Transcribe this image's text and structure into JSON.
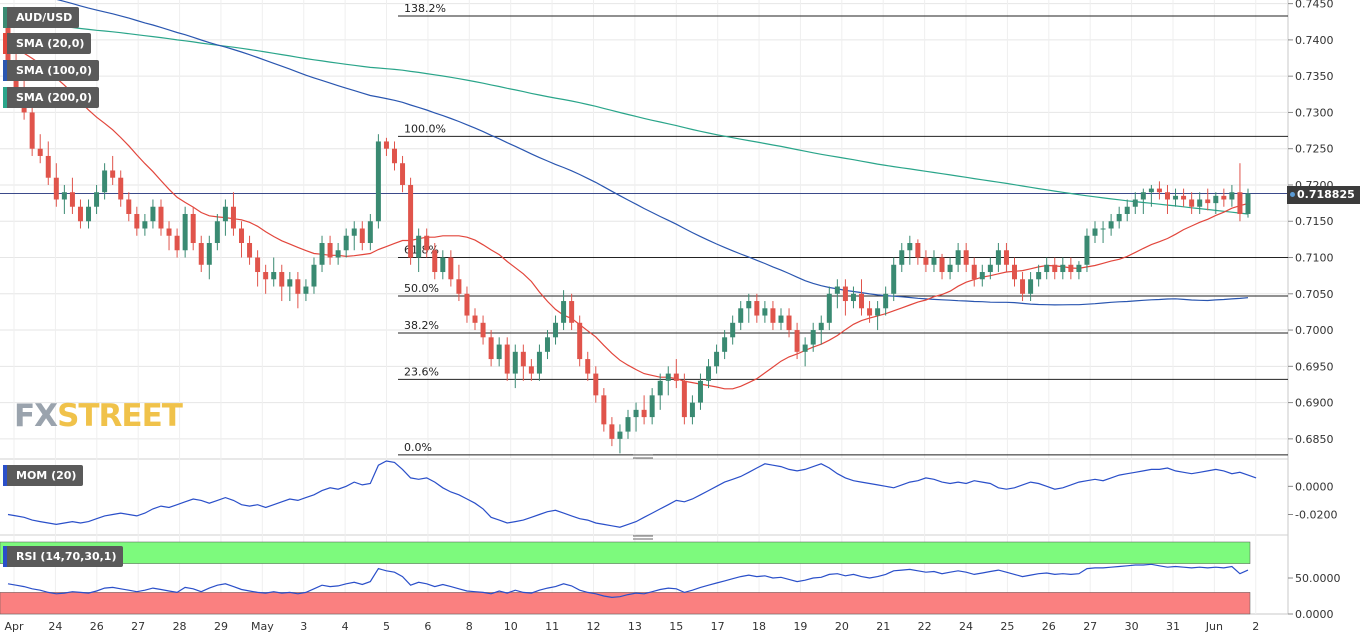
{
  "colors": {
    "bull": "#3a8a72",
    "bear": "#e0544b",
    "sma20": "#e2463c",
    "sma100": "#2a56b0",
    "sma200": "#2aa58a",
    "mom": "#2a4fc9",
    "rsi": "#2a4fc9",
    "rsi_overbought_zone": "#7dfa7d",
    "rsi_oversold_zone": "#fa8080",
    "grid": "#e6e6e6",
    "fib_line": "#222222",
    "price_line": "#3b4a8a"
  },
  "indicators": {
    "symbol": "AUD/USD",
    "sma20": "SMA (20,0)",
    "sma100": "SMA (100,0)",
    "sma200": "SMA (200,0)",
    "mom": "MOM (20)",
    "rsi": "RSI (14,70,30,1)"
  },
  "current_price": "0.718825",
  "logo": {
    "fx": "FX",
    "street": "STREET"
  },
  "chart_data": {
    "type": "candlestick",
    "x_labels": [
      "Apr",
      "24",
      "26",
      "27",
      "28",
      "29",
      "May",
      "3",
      "4",
      "5",
      "6",
      "8",
      "10",
      "11",
      "12",
      "13",
      "15",
      "17",
      "18",
      "19",
      "20",
      "21",
      "22",
      "24",
      "25",
      "26",
      "27",
      "30",
      "31",
      "Jun",
      "2"
    ],
    "price_axis": {
      "ticks": [
        "0.7450",
        "0.7400",
        "0.7350",
        "0.7300",
        "0.7250",
        "0.7200",
        "0.7150",
        "0.7100",
        "0.7050",
        "0.7000",
        "0.6950",
        "0.6900",
        "0.6850"
      ],
      "ylim": [
        0.6825,
        0.7455
      ]
    },
    "fibonacci": [
      {
        "label": "138.2%",
        "value": 0.7433
      },
      {
        "label": "100.0%",
        "value": 0.7267
      },
      {
        "label": "61.8%",
        "value": 0.71
      },
      {
        "label": "50.0%",
        "value": 0.7047
      },
      {
        "label": "38.2%",
        "value": 0.6996
      },
      {
        "label": "23.6%",
        "value": 0.6932
      },
      {
        "label": "0.0%",
        "value": 0.6828
      }
    ],
    "current_price": 0.718825,
    "candles": [
      [
        0.742,
        0.744,
        0.736,
        0.737
      ],
      [
        0.737,
        0.739,
        0.732,
        0.733
      ],
      [
        0.733,
        0.735,
        0.729,
        0.73
      ],
      [
        0.73,
        0.731,
        0.724,
        0.725
      ],
      [
        0.725,
        0.727,
        0.723,
        0.724
      ],
      [
        0.724,
        0.726,
        0.72,
        0.721
      ],
      [
        0.721,
        0.723,
        0.717,
        0.718
      ],
      [
        0.718,
        0.72,
        0.716,
        0.719
      ],
      [
        0.719,
        0.721,
        0.716,
        0.717
      ],
      [
        0.717,
        0.718,
        0.714,
        0.715
      ],
      [
        0.715,
        0.718,
        0.714,
        0.717
      ],
      [
        0.717,
        0.72,
        0.716,
        0.719
      ],
      [
        0.719,
        0.723,
        0.718,
        0.722
      ],
      [
        0.722,
        0.724,
        0.72,
        0.721
      ],
      [
        0.721,
        0.722,
        0.717,
        0.718
      ],
      [
        0.718,
        0.719,
        0.715,
        0.716
      ],
      [
        0.716,
        0.717,
        0.713,
        0.714
      ],
      [
        0.714,
        0.716,
        0.713,
        0.715
      ],
      [
        0.715,
        0.718,
        0.714,
        0.717
      ],
      [
        0.717,
        0.718,
        0.713,
        0.714
      ],
      [
        0.714,
        0.715,
        0.711,
        0.713
      ],
      [
        0.713,
        0.714,
        0.71,
        0.711
      ],
      [
        0.711,
        0.717,
        0.71,
        0.716
      ],
      [
        0.716,
        0.717,
        0.711,
        0.712
      ],
      [
        0.712,
        0.713,
        0.708,
        0.709
      ],
      [
        0.709,
        0.713,
        0.707,
        0.712
      ],
      [
        0.712,
        0.716,
        0.711,
        0.715
      ],
      [
        0.715,
        0.718,
        0.713,
        0.717
      ],
      [
        0.717,
        0.719,
        0.713,
        0.714
      ],
      [
        0.714,
        0.715,
        0.71,
        0.712
      ],
      [
        0.712,
        0.713,
        0.709,
        0.71
      ],
      [
        0.71,
        0.711,
        0.706,
        0.708
      ],
      [
        0.708,
        0.709,
        0.705,
        0.707
      ],
      [
        0.707,
        0.71,
        0.706,
        0.708
      ],
      [
        0.708,
        0.709,
        0.704,
        0.706
      ],
      [
        0.706,
        0.708,
        0.704,
        0.707
      ],
      [
        0.707,
        0.708,
        0.703,
        0.705
      ],
      [
        0.705,
        0.707,
        0.704,
        0.706
      ],
      [
        0.706,
        0.71,
        0.705,
        0.709
      ],
      [
        0.709,
        0.713,
        0.708,
        0.712
      ],
      [
        0.712,
        0.713,
        0.709,
        0.71
      ],
      [
        0.71,
        0.712,
        0.709,
        0.711
      ],
      [
        0.711,
        0.714,
        0.71,
        0.713
      ],
      [
        0.713,
        0.715,
        0.711,
        0.714
      ],
      [
        0.714,
        0.715,
        0.711,
        0.712
      ],
      [
        0.712,
        0.716,
        0.711,
        0.715
      ],
      [
        0.715,
        0.727,
        0.714,
        0.726
      ],
      [
        0.726,
        0.7265,
        0.724,
        0.725
      ],
      [
        0.725,
        0.726,
        0.722,
        0.723
      ],
      [
        0.723,
        0.724,
        0.719,
        0.72
      ],
      [
        0.72,
        0.721,
        0.709,
        0.71
      ],
      [
        0.71,
        0.714,
        0.708,
        0.713
      ],
      [
        0.713,
        0.714,
        0.71,
        0.711
      ],
      [
        0.711,
        0.712,
        0.707,
        0.708
      ],
      [
        0.708,
        0.711,
        0.707,
        0.71
      ],
      [
        0.71,
        0.711,
        0.706,
        0.707
      ],
      [
        0.707,
        0.709,
        0.704,
        0.705
      ],
      [
        0.705,
        0.706,
        0.701,
        0.702
      ],
      [
        0.702,
        0.703,
        0.7,
        0.701
      ],
      [
        0.701,
        0.702,
        0.698,
        0.699
      ],
      [
        0.699,
        0.7,
        0.695,
        0.696
      ],
      [
        0.696,
        0.699,
        0.695,
        0.698
      ],
      [
        0.698,
        0.699,
        0.693,
        0.694
      ],
      [
        0.694,
        0.698,
        0.692,
        0.697
      ],
      [
        0.697,
        0.698,
        0.693,
        0.695
      ],
      [
        0.695,
        0.696,
        0.693,
        0.694
      ],
      [
        0.694,
        0.698,
        0.693,
        0.697
      ],
      [
        0.697,
        0.7,
        0.696,
        0.699
      ],
      [
        0.699,
        0.702,
        0.698,
        0.701
      ],
      [
        0.701,
        0.7055,
        0.7,
        0.704
      ],
      [
        0.704,
        0.705,
        0.7,
        0.701
      ],
      [
        0.701,
        0.702,
        0.695,
        0.696
      ],
      [
        0.696,
        0.697,
        0.693,
        0.694
      ],
      [
        0.694,
        0.695,
        0.69,
        0.691
      ],
      [
        0.691,
        0.692,
        0.686,
        0.687
      ],
      [
        0.687,
        0.688,
        0.684,
        0.685
      ],
      [
        0.685,
        0.687,
        0.683,
        0.686
      ],
      [
        0.686,
        0.689,
        0.685,
        0.688
      ],
      [
        0.688,
        0.69,
        0.686,
        0.689
      ],
      [
        0.689,
        0.691,
        0.687,
        0.688
      ],
      [
        0.688,
        0.692,
        0.687,
        0.691
      ],
      [
        0.691,
        0.694,
        0.689,
        0.693
      ],
      [
        0.693,
        0.695,
        0.691,
        0.694
      ],
      [
        0.694,
        0.696,
        0.692,
        0.693
      ],
      [
        0.693,
        0.694,
        0.687,
        0.688
      ],
      [
        0.688,
        0.691,
        0.687,
        0.69
      ],
      [
        0.69,
        0.694,
        0.689,
        0.693
      ],
      [
        0.693,
        0.696,
        0.692,
        0.695
      ],
      [
        0.695,
        0.698,
        0.694,
        0.697
      ],
      [
        0.697,
        0.7,
        0.696,
        0.699
      ],
      [
        0.699,
        0.702,
        0.698,
        0.701
      ],
      [
        0.701,
        0.704,
        0.7,
        0.703
      ],
      [
        0.703,
        0.705,
        0.701,
        0.704
      ],
      [
        0.704,
        0.705,
        0.701,
        0.702
      ],
      [
        0.702,
        0.704,
        0.701,
        0.703
      ],
      [
        0.703,
        0.704,
        0.7,
        0.701
      ],
      [
        0.701,
        0.703,
        0.7,
        0.702
      ],
      [
        0.702,
        0.703,
        0.699,
        0.7
      ],
      [
        0.7,
        0.701,
        0.696,
        0.697
      ],
      [
        0.697,
        0.699,
        0.695,
        0.698
      ],
      [
        0.698,
        0.701,
        0.697,
        0.7
      ],
      [
        0.7,
        0.702,
        0.698,
        0.701
      ],
      [
        0.701,
        0.706,
        0.7,
        0.705
      ],
      [
        0.705,
        0.707,
        0.703,
        0.706
      ],
      [
        0.706,
        0.707,
        0.702,
        0.704
      ],
      [
        0.704,
        0.706,
        0.703,
        0.705
      ],
      [
        0.705,
        0.707,
        0.702,
        0.703
      ],
      [
        0.703,
        0.704,
        0.701,
        0.702
      ],
      [
        0.702,
        0.704,
        0.7,
        0.703
      ],
      [
        0.703,
        0.706,
        0.702,
        0.705
      ],
      [
        0.705,
        0.71,
        0.704,
        0.709
      ],
      [
        0.709,
        0.712,
        0.708,
        0.711
      ],
      [
        0.711,
        0.713,
        0.709,
        0.712
      ],
      [
        0.712,
        0.7125,
        0.709,
        0.71
      ],
      [
        0.71,
        0.711,
        0.708,
        0.709
      ],
      [
        0.709,
        0.711,
        0.708,
        0.71
      ],
      [
        0.71,
        0.7105,
        0.707,
        0.708
      ],
      [
        0.708,
        0.71,
        0.707,
        0.709
      ],
      [
        0.709,
        0.712,
        0.708,
        0.711
      ],
      [
        0.711,
        0.712,
        0.708,
        0.709
      ],
      [
        0.709,
        0.71,
        0.706,
        0.707
      ],
      [
        0.707,
        0.709,
        0.706,
        0.708
      ],
      [
        0.708,
        0.71,
        0.707,
        0.709
      ],
      [
        0.709,
        0.712,
        0.708,
        0.711
      ],
      [
        0.711,
        0.712,
        0.708,
        0.709
      ],
      [
        0.709,
        0.71,
        0.706,
        0.707
      ],
      [
        0.707,
        0.708,
        0.704,
        0.705
      ],
      [
        0.705,
        0.708,
        0.704,
        0.707
      ],
      [
        0.707,
        0.709,
        0.706,
        0.708
      ],
      [
        0.708,
        0.71,
        0.707,
        0.709
      ],
      [
        0.709,
        0.71,
        0.707,
        0.708
      ],
      [
        0.708,
        0.71,
        0.707,
        0.709
      ],
      [
        0.709,
        0.71,
        0.707,
        0.708
      ],
      [
        0.708,
        0.7095,
        0.707,
        0.709
      ],
      [
        0.709,
        0.714,
        0.708,
        0.713
      ],
      [
        0.713,
        0.715,
        0.712,
        0.714
      ],
      [
        0.714,
        0.715,
        0.712,
        0.714
      ],
      [
        0.714,
        0.716,
        0.713,
        0.715
      ],
      [
        0.715,
        0.717,
        0.714,
        0.716
      ],
      [
        0.716,
        0.718,
        0.715,
        0.717
      ],
      [
        0.717,
        0.719,
        0.716,
        0.718
      ],
      [
        0.718,
        0.7195,
        0.716,
        0.719
      ],
      [
        0.719,
        0.72,
        0.717,
        0.7195
      ],
      [
        0.7195,
        0.7205,
        0.718,
        0.719
      ],
      [
        0.719,
        0.72,
        0.716,
        0.718
      ],
      [
        0.718,
        0.7195,
        0.717,
        0.7185
      ],
      [
        0.7185,
        0.7195,
        0.717,
        0.718
      ],
      [
        0.718,
        0.719,
        0.716,
        0.717
      ],
      [
        0.717,
        0.719,
        0.716,
        0.718
      ],
      [
        0.718,
        0.7195,
        0.7165,
        0.7175
      ],
      [
        0.7175,
        0.719,
        0.716,
        0.7185
      ],
      [
        0.7185,
        0.7195,
        0.717,
        0.718
      ],
      [
        0.718,
        0.72,
        0.717,
        0.719
      ],
      [
        0.719,
        0.723,
        0.715,
        0.716
      ],
      [
        0.716,
        0.7195,
        0.7155,
        0.718825
      ]
    ],
    "mom_axis": {
      "ticks": [
        "0.0000",
        "-0.0200"
      ],
      "ylim": [
        -0.031,
        0.018
      ]
    },
    "mom": [
      -0.02,
      -0.021,
      -0.022,
      -0.024,
      -0.025,
      -0.026,
      -0.027,
      -0.026,
      -0.025,
      -0.026,
      -0.025,
      -0.023,
      -0.021,
      -0.02,
      -0.019,
      -0.02,
      -0.021,
      -0.019,
      -0.016,
      -0.014,
      -0.015,
      -0.013,
      -0.011,
      -0.009,
      -0.01,
      -0.012,
      -0.01,
      -0.008,
      -0.01,
      -0.013,
      -0.014,
      -0.013,
      -0.015,
      -0.013,
      -0.011,
      -0.009,
      -0.01,
      -0.008,
      -0.006,
      -0.003,
      -0.001,
      -0.002,
      0.0,
      0.003,
      0.001,
      0.002,
      0.015,
      0.018,
      0.017,
      0.012,
      0.006,
      0.005,
      0.006,
      0.003,
      -0.001,
      -0.004,
      -0.006,
      -0.009,
      -0.012,
      -0.016,
      -0.022,
      -0.024,
      -0.026,
      -0.025,
      -0.024,
      -0.022,
      -0.02,
      -0.018,
      -0.017,
      -0.019,
      -0.021,
      -0.023,
      -0.024,
      -0.026,
      -0.027,
      -0.028,
      -0.029,
      -0.027,
      -0.025,
      -0.022,
      -0.019,
      -0.016,
      -0.013,
      -0.01,
      -0.011,
      -0.009,
      -0.006,
      -0.003,
      0.0,
      0.003,
      0.005,
      0.007,
      0.01,
      0.013,
      0.016,
      0.015,
      0.014,
      0.012,
      0.011,
      0.012,
      0.014,
      0.016,
      0.013,
      0.009,
      0.006,
      0.004,
      0.003,
      0.002,
      0.001,
      0.0,
      -0.001,
      0.001,
      0.003,
      0.004,
      0.006,
      0.005,
      0.003,
      0.002,
      0.003,
      0.002,
      0.004,
      0.003,
      0.002,
      -0.001,
      -0.002,
      -0.001,
      0.001,
      0.003,
      0.002,
      0.0,
      -0.002,
      -0.001,
      0.001,
      0.003,
      0.004,
      0.005,
      0.004,
      0.006,
      0.008,
      0.009,
      0.01,
      0.011,
      0.012,
      0.012,
      0.013,
      0.011,
      0.01,
      0.009,
      0.01,
      0.011,
      0.012,
      0.011,
      0.009,
      0.01,
      0.008,
      0.006
    ],
    "rsi_axis": {
      "ticks": [
        "50.0000",
        "0.0000"
      ],
      "ylim": [
        0,
        100
      ],
      "overbought": 70,
      "oversold": 30
    },
    "rsi": [
      42,
      40,
      38,
      35,
      33,
      30,
      28,
      29,
      31,
      30,
      29,
      32,
      36,
      37,
      35,
      33,
      31,
      33,
      36,
      34,
      32,
      30,
      37,
      35,
      31,
      36,
      40,
      42,
      38,
      34,
      32,
      30,
      29,
      31,
      29,
      30,
      28,
      30,
      35,
      40,
      38,
      39,
      42,
      44,
      41,
      45,
      63,
      60,
      58,
      52,
      40,
      44,
      42,
      38,
      41,
      38,
      35,
      32,
      31,
      30,
      28,
      32,
      29,
      33,
      30,
      29,
      33,
      36,
      38,
      42,
      39,
      33,
      30,
      28,
      25,
      23,
      24,
      27,
      29,
      28,
      31,
      34,
      36,
      35,
      30,
      33,
      37,
      40,
      43,
      46,
      49,
      52,
      54,
      52,
      53,
      50,
      51,
      48,
      45,
      47,
      50,
      51,
      55,
      56,
      53,
      55,
      52,
      50,
      52,
      55,
      60,
      61,
      62,
      60,
      58,
      59,
      56,
      58,
      60,
      58,
      55,
      57,
      59,
      61,
      58,
      55,
      52,
      54,
      56,
      57,
      55,
      56,
      55,
      56,
      63,
      64,
      64,
      65,
      66,
      67,
      68,
      68,
      69,
      67,
      65,
      66,
      65,
      64,
      65,
      64,
      65,
      64,
      66,
      56,
      61
    ]
  }
}
